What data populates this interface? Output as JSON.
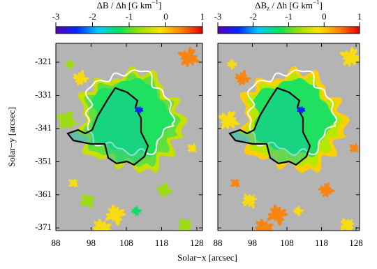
{
  "chart_data": [
    {
      "type": "heatmap",
      "title_parts": [
        "ΔB / Δh   [G km",
        "−1",
        "]"
      ],
      "colorbar": {
        "lim": [
          -3,
          1
        ],
        "ticks": [
          -3,
          -2,
          -1,
          0,
          1
        ],
        "colors": [
          "#5a00b4",
          "#0028ff",
          "#00c8ff",
          "#00e060",
          "#9be000",
          "#ffe000",
          "#ff8000",
          "#e00000"
        ]
      },
      "xlim": [
        88,
        129.6
      ],
      "xticks": [
        88,
        98,
        108,
        118,
        128
      ],
      "ylim": [
        -371.8,
        -315.3
      ],
      "yticks": [
        -321,
        -331,
        -341,
        -351,
        -361,
        -371
      ],
      "ytick_labels": true,
      "xlabel": "Solar−x  [arcsec]",
      "ylabel": "Solar−y  [arcsec]",
      "background": "#b4b4b4"
    },
    {
      "type": "heatmap",
      "title_parts": [
        "ΔB",
        "z",
        " / Δh   [G km",
        "−1",
        "]"
      ],
      "colorbar": {
        "lim": [
          -3,
          1
        ],
        "ticks": [
          -3,
          -2,
          -1,
          0,
          1
        ],
        "colors": [
          "#5a00b4",
          "#0028ff",
          "#00c8ff",
          "#00e060",
          "#9be000",
          "#ffe000",
          "#ff8000",
          "#e00000"
        ]
      },
      "xlim": [
        88,
        129
      ],
      "xticks": [
        88,
        98,
        108,
        118,
        128
      ],
      "ylim": [
        -371.8,
        -315.3
      ],
      "yticks": [
        -321,
        -331,
        -341,
        -351,
        -361,
        -371
      ],
      "ytick_labels": false,
      "background": "#b4b4b4"
    }
  ]
}
